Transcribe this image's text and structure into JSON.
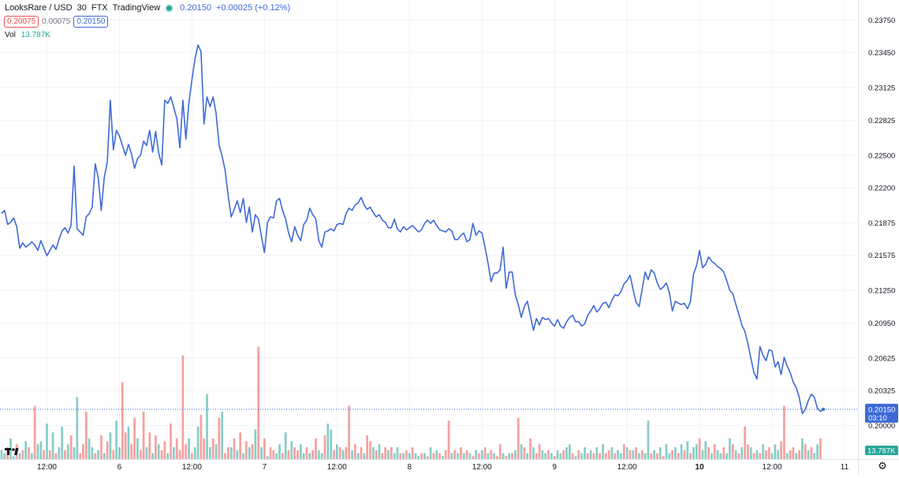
{
  "header": {
    "symbol": "LooksRare / USD",
    "interval": "30",
    "exchange": "FTX",
    "source": "TradingView",
    "last_price": "0.20150",
    "change": "+0.00025 (+0.12%)",
    "bid": "0.20075",
    "spread": "0.00075",
    "ask": "0.20150",
    "vol_label": "Vol",
    "vol_value": "13.787K"
  },
  "price_tag": {
    "price": "0.20150",
    "countdown": "03:10"
  },
  "volume_tag": "13.787K",
  "colors": {
    "line": "#3d6ad6",
    "up": "#26a69a",
    "down": "#ef5350",
    "grid": "#f0f3fa"
  },
  "icons": {
    "logo": "tradingview-logo-icon",
    "settings": "gear-icon"
  },
  "chart_data": {
    "type": "line",
    "title": "",
    "xlabel": "",
    "ylabel": "",
    "ylim": [
      0.1985,
      0.239
    ],
    "y_ticks": [
      "0.23750",
      "0.23450",
      "0.23125",
      "0.22825",
      "0.22500",
      "0.22200",
      "0.21875",
      "0.21575",
      "0.21250",
      "0.20950",
      "0.20625",
      "0.20325",
      "0.20000"
    ],
    "x_ticks": [
      "12:00",
      "6",
      "12:00",
      "7",
      "12:00",
      "8",
      "12:00",
      "9",
      "12:00",
      "10",
      "12:00",
      "11"
    ],
    "x_tick_bold": [
      false,
      false,
      false,
      false,
      false,
      false,
      false,
      false,
      false,
      true,
      false,
      false
    ],
    "x_tick_index": [
      15,
      39,
      63,
      87,
      111,
      135,
      159,
      183,
      207,
      231,
      255,
      279
    ],
    "bars_total": 280,
    "series": [
      {
        "values": [
          0.2196,
          0.2199,
          0.2186,
          0.2188,
          0.2192,
          0.2184,
          0.2164,
          0.2169,
          0.2165,
          0.2167,
          0.217,
          0.2167,
          0.2162,
          0.2171,
          0.2164,
          0.2157,
          0.2162,
          0.2167,
          0.2163,
          0.2172,
          0.218,
          0.2183,
          0.2178,
          0.2185,
          0.224,
          0.2182,
          0.2179,
          0.2176,
          0.2193,
          0.2196,
          0.2202,
          0.2242,
          0.2229,
          0.2199,
          0.223,
          0.2244,
          0.2301,
          0.2255,
          0.2273,
          0.2268,
          0.2259,
          0.225,
          0.226,
          0.2251,
          0.2238,
          0.2247,
          0.225,
          0.2263,
          0.2259,
          0.2273,
          0.2253,
          0.2272,
          0.2252,
          0.2241,
          0.2301,
          0.2298,
          0.2304,
          0.2294,
          0.2284,
          0.2257,
          0.2301,
          0.2265,
          0.2299,
          0.232,
          0.2339,
          0.2352,
          0.2346,
          0.2279,
          0.2304,
          0.2295,
          0.2304,
          0.2289,
          0.2259,
          0.2249,
          0.2236,
          0.2212,
          0.2193,
          0.22,
          0.2208,
          0.2197,
          0.221,
          0.2188,
          0.2202,
          0.2179,
          0.2195,
          0.2191,
          0.2175,
          0.216,
          0.2188,
          0.2193,
          0.2192,
          0.2208,
          0.221,
          0.2199,
          0.2191,
          0.2178,
          0.217,
          0.2184,
          0.2176,
          0.2171,
          0.2186,
          0.219,
          0.2201,
          0.2195,
          0.2191,
          0.2171,
          0.2165,
          0.2179,
          0.218,
          0.2182,
          0.218,
          0.2186,
          0.2187,
          0.2186,
          0.2196,
          0.2201,
          0.2199,
          0.2204,
          0.2206,
          0.2211,
          0.2204,
          0.22,
          0.2202,
          0.2197,
          0.2193,
          0.2195,
          0.219,
          0.2188,
          0.2183,
          0.2183,
          0.2191,
          0.2182,
          0.2179,
          0.2184,
          0.2181,
          0.2183,
          0.2185,
          0.2182,
          0.2179,
          0.2181,
          0.2187,
          0.219,
          0.2187,
          0.219,
          0.2185,
          0.2181,
          0.218,
          0.2179,
          0.2182,
          0.218,
          0.2172,
          0.2172,
          0.2176,
          0.2178,
          0.217,
          0.2172,
          0.2187,
          0.2176,
          0.218,
          0.2178,
          0.2165,
          0.215,
          0.2133,
          0.2141,
          0.2141,
          0.2144,
          0.2165,
          0.2127,
          0.2142,
          0.2142,
          0.2121,
          0.2112,
          0.21,
          0.211,
          0.2115,
          0.2102,
          0.2088,
          0.2099,
          0.2093,
          0.21,
          0.2098,
          0.2099,
          0.2095,
          0.2092,
          0.2098,
          0.2092,
          0.209,
          0.2096,
          0.21,
          0.2102,
          0.2096,
          0.2096,
          0.2092,
          0.2094,
          0.2102,
          0.2106,
          0.2111,
          0.2105,
          0.2108,
          0.2113,
          0.2114,
          0.2109,
          0.2116,
          0.2121,
          0.212,
          0.2124,
          0.2131,
          0.2134,
          0.2139,
          0.2126,
          0.2114,
          0.211,
          0.2126,
          0.2142,
          0.2135,
          0.2144,
          0.2141,
          0.2132,
          0.2126,
          0.2128,
          0.2132,
          0.2123,
          0.2106,
          0.2115,
          0.2113,
          0.2112,
          0.2113,
          0.2108,
          0.2115,
          0.214,
          0.2148,
          0.2162,
          0.2146,
          0.2149,
          0.2156,
          0.2152,
          0.215,
          0.2147,
          0.2145,
          0.2142,
          0.2134,
          0.2125,
          0.2122,
          0.2112,
          0.2103,
          0.2093,
          0.2087,
          0.2076,
          0.2062,
          0.2049,
          0.2043,
          0.2073,
          0.2065,
          0.206,
          0.207,
          0.2069,
          0.2054,
          0.2059,
          0.2047,
          0.2063,
          0.2055,
          0.2049,
          0.204,
          0.2035,
          0.2026,
          0.2011,
          0.2015,
          0.2023,
          0.2029,
          0.2026,
          0.2016,
          0.2013,
          0.2015
        ]
      }
    ],
    "volume": {
      "unit_note": "",
      "values": [
        3,
        2,
        4,
        7,
        1,
        5,
        2,
        3,
        6,
        4,
        2,
        18,
        5,
        6,
        3,
        12,
        3,
        9,
        2,
        4,
        11,
        3,
        5,
        8,
        4,
        21,
        2,
        5,
        16,
        7,
        4,
        2,
        3,
        8,
        2,
        6,
        9,
        3,
        13,
        4,
        26,
        9,
        11,
        5,
        14,
        7,
        3,
        16,
        4,
        9,
        2,
        8,
        5,
        3,
        6,
        2,
        12,
        4,
        7,
        3,
        35,
        5,
        7,
        2,
        4,
        11,
        15,
        7,
        22,
        4,
        7,
        5,
        14,
        16,
        2,
        4,
        4,
        7,
        3,
        9,
        2,
        6,
        4,
        5,
        10,
        38,
        4,
        7,
        1,
        4,
        3,
        2,
        5,
        2,
        9,
        3,
        6,
        4,
        3,
        5,
        2,
        4,
        2,
        3,
        7,
        3,
        2,
        8,
        12,
        10,
        3,
        5,
        4,
        3,
        4,
        18,
        3,
        5,
        2,
        4,
        2,
        8,
        6,
        4,
        3,
        5,
        2,
        4,
        3,
        4,
        2,
        4,
        2,
        2,
        3,
        2,
        4,
        2,
        1,
        2,
        2,
        1,
        4,
        2,
        3,
        2,
        1,
        3,
        13,
        2,
        3,
        2,
        4,
        2,
        3,
        2,
        1,
        3,
        2,
        3,
        4,
        2,
        3,
        2,
        1,
        5,
        2,
        1,
        2,
        2,
        3,
        14,
        5,
        4,
        2,
        7,
        4,
        2,
        5,
        3,
        2,
        3,
        2,
        1,
        3,
        2,
        3,
        4,
        5,
        2,
        1,
        3,
        2,
        4,
        2,
        3,
        2,
        4,
        2,
        5,
        2,
        3,
        4,
        2,
        3,
        2,
        5,
        4,
        3,
        3,
        4,
        2,
        3,
        2,
        13,
        2,
        3,
        2,
        4,
        1,
        5,
        2,
        3,
        4,
        2,
        5,
        3,
        6,
        2,
        4,
        5,
        7,
        3,
        6,
        4,
        2,
        5,
        3,
        2,
        4,
        2,
        7,
        5,
        3,
        2,
        4,
        11,
        5,
        4,
        2,
        3,
        2,
        5,
        3,
        4,
        2,
        5,
        3,
        6,
        18,
        2,
        3,
        4,
        2,
        3,
        7,
        5,
        3,
        4,
        2,
        5,
        7
      ],
      "direction": [
        1,
        1,
        0,
        1,
        1,
        0,
        1,
        0,
        1,
        0,
        1,
        0,
        1,
        1,
        0,
        1,
        0,
        1,
        0,
        1,
        1,
        0,
        1,
        0,
        1,
        1,
        0,
        0,
        0,
        1,
        1,
        0,
        1,
        0,
        1,
        0,
        1,
        0,
        1,
        1,
        0,
        0,
        1,
        0,
        0,
        1,
        0,
        0,
        1,
        0,
        1,
        0,
        1,
        0,
        0,
        1,
        0,
        1,
        0,
        0,
        0,
        0,
        1,
        0,
        1,
        1,
        0,
        0,
        1,
        1,
        0,
        1,
        0,
        1,
        0,
        0,
        1,
        0,
        1,
        0,
        1,
        0,
        1,
        0,
        1,
        0,
        1,
        0,
        1,
        0,
        0,
        1,
        1,
        0,
        1,
        0,
        1,
        0,
        0,
        1,
        1,
        0,
        1,
        0,
        0,
        1,
        1,
        0,
        1,
        1,
        0,
        1,
        0,
        1,
        0,
        0,
        1,
        0,
        1,
        0,
        1,
        0,
        0,
        1,
        0,
        1,
        0,
        0,
        1,
        0,
        1,
        1,
        0,
        1,
        0,
        1,
        0,
        1,
        1,
        0,
        1,
        0,
        1,
        0,
        1,
        0,
        1,
        0,
        0,
        1,
        0,
        1,
        0,
        1,
        0,
        1,
        0,
        1,
        0,
        1,
        0,
        1,
        0,
        1,
        0,
        0,
        1,
        0,
        1,
        0,
        1,
        0,
        1,
        0,
        1,
        0,
        1,
        0,
        0,
        1,
        1,
        0,
        1,
        0,
        1,
        1,
        0,
        1,
        1,
        0,
        1,
        0,
        1,
        1,
        0,
        1,
        0,
        1,
        0,
        1,
        0,
        0,
        1,
        0,
        1,
        1,
        0,
        1,
        0,
        1,
        0,
        1,
        0,
        1,
        1,
        0,
        1,
        0,
        1,
        0,
        1,
        1,
        0,
        1,
        0,
        1,
        0,
        1,
        0,
        1,
        1,
        0,
        1,
        1,
        0,
        1,
        0,
        1,
        1,
        0,
        1,
        1,
        0,
        1,
        0,
        1,
        0,
        0,
        1,
        0,
        1,
        0,
        1,
        0,
        0,
        1,
        1,
        1,
        0,
        0,
        1,
        0,
        0,
        1,
        0,
        1,
        0,
        1,
        0,
        1,
        1
      ]
    }
  }
}
